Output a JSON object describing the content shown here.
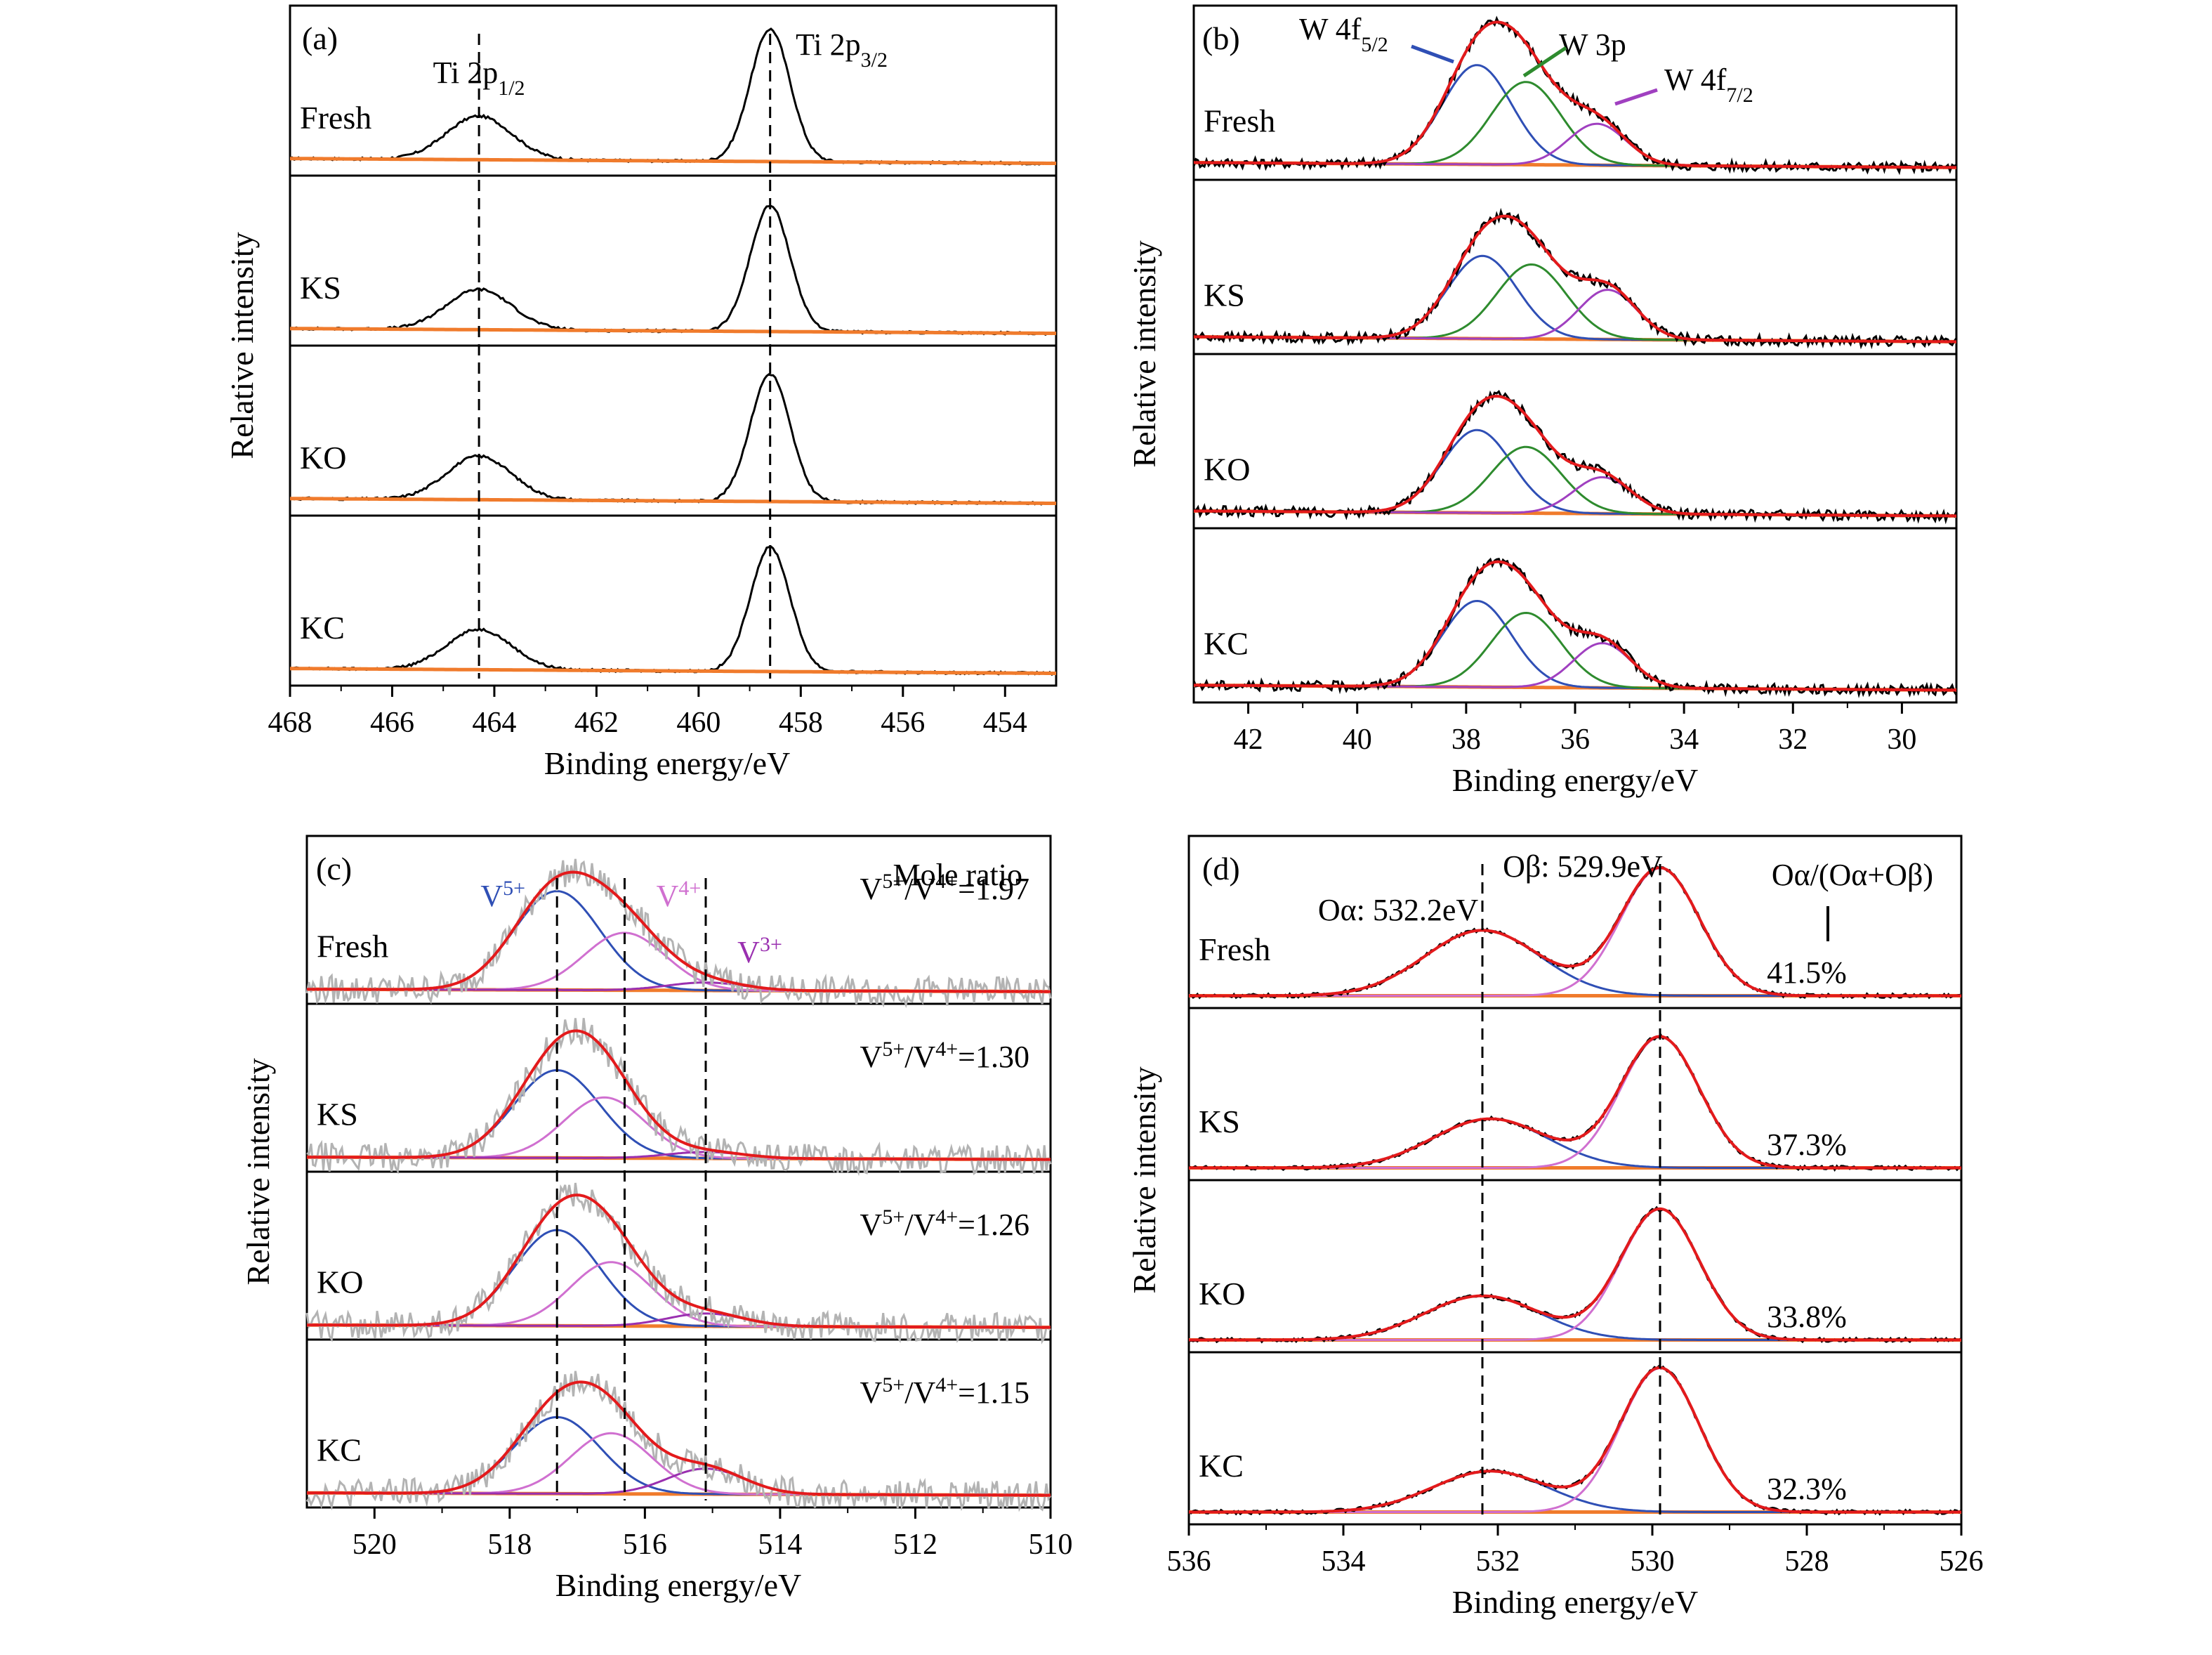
{
  "colors": {
    "raw_black": "#000000",
    "raw_gray": "#b3b3b3",
    "fit_envelope": "#e31a1c",
    "background": "#f07b2c",
    "ti_w_blue": "#2f4fb5",
    "w3p_green": "#2e8b2e",
    "w4f72_magenta": "#a040c0",
    "v5_blue": "#2f4fb5",
    "v4_pink": "#d070d0",
    "v3_purple": "#9a30b0",
    "o_alpha_blue": "#2f4fb5",
    "o_beta_pink": "#d070d0",
    "dashed_line": "#000000"
  },
  "chart_data": [
    {
      "panel": "(a)",
      "type": "line",
      "xlabel": "Binding energy/eV",
      "ylabel": "Relative intensity",
      "xlim": [
        468,
        453
      ],
      "xticks": [
        468,
        466,
        464,
        462,
        460,
        458,
        456,
        454
      ],
      "samples": [
        "Fresh",
        "KS",
        "KO",
        "KC"
      ],
      "dashed_lines": [
        464.3,
        458.6
      ],
      "annotations": [
        {
          "text": "Ti 2p",
          "sub": "1/2",
          "at": 464.3
        },
        {
          "text": "Ti 2p",
          "sub": "3/2",
          "at": 458.6
        }
      ],
      "series": [
        {
          "sample": "Fresh",
          "peaks": [
            {
              "name": "Ti 2p1/2",
              "center": 464.3,
              "height": 0.27
            },
            {
              "name": "Ti 2p3/2",
              "center": 458.6,
              "height": 0.82
            }
          ]
        },
        {
          "sample": "KS",
          "peaks": [
            {
              "name": "Ti 2p1/2",
              "center": 464.3,
              "height": 0.25
            },
            {
              "name": "Ti 2p3/2",
              "center": 458.6,
              "height": 0.78
            }
          ]
        },
        {
          "sample": "KO",
          "peaks": [
            {
              "name": "Ti 2p1/2",
              "center": 464.3,
              "height": 0.27
            },
            {
              "name": "Ti 2p3/2",
              "center": 458.6,
              "height": 0.79
            }
          ]
        },
        {
          "sample": "KC",
          "peaks": [
            {
              "name": "Ti 2p1/2",
              "center": 464.3,
              "height": 0.25
            },
            {
              "name": "Ti 2p3/2",
              "center": 458.6,
              "height": 0.77
            }
          ]
        }
      ]
    },
    {
      "panel": "(b)",
      "type": "line",
      "xlabel": "Binding energy/eV",
      "ylabel": "Relative intensity",
      "xlim": [
        43,
        29
      ],
      "xticks": [
        42,
        40,
        38,
        36,
        34,
        32,
        30
      ],
      "samples": [
        "Fresh",
        "KS",
        "KO",
        "KC"
      ],
      "annotations": [
        {
          "text": "W 4f",
          "sub": "5/2"
        },
        {
          "text": "W 3p"
        },
        {
          "text": "W 4f",
          "sub": "7/2"
        }
      ],
      "series": [
        {
          "sample": "Fresh",
          "peaks": [
            {
              "name": "W 4f5/2",
              "center": 37.8,
              "height": 0.6
            },
            {
              "name": "W 3p",
              "center": 36.9,
              "height": 0.5
            },
            {
              "name": "W 4f7/2",
              "center": 35.6,
              "height": 0.25
            }
          ]
        },
        {
          "sample": "KS",
          "peaks": [
            {
              "name": "W 4f5/2",
              "center": 37.7,
              "height": 0.5
            },
            {
              "name": "W 3p",
              "center": 36.8,
              "height": 0.45
            },
            {
              "name": "W 4f7/2",
              "center": 35.4,
              "height": 0.3
            }
          ]
        },
        {
          "sample": "KO",
          "peaks": [
            {
              "name": "W 4f5/2",
              "center": 37.8,
              "height": 0.5
            },
            {
              "name": "W 3p",
              "center": 36.9,
              "height": 0.4
            },
            {
              "name": "W 4f7/2",
              "center": 35.5,
              "height": 0.22
            }
          ]
        },
        {
          "sample": "KC",
          "peaks": [
            {
              "name": "W 4f5/2",
              "center": 37.8,
              "height": 0.52
            },
            {
              "name": "W 3p",
              "center": 36.9,
              "height": 0.45
            },
            {
              "name": "W 4f7/2",
              "center": 35.5,
              "height": 0.27
            }
          ]
        }
      ]
    },
    {
      "panel": "(c)",
      "type": "line",
      "xlabel": "Binding energy/eV",
      "ylabel": "Relative intensity",
      "xlim": [
        521,
        510
      ],
      "xticks": [
        520,
        518,
        516,
        514,
        512,
        510
      ],
      "samples": [
        "Fresh",
        "KS",
        "KO",
        "KC"
      ],
      "dashed_lines": [
        517.3,
        516.3,
        515.1
      ],
      "legend_title": "Mole ratio",
      "annotations": [
        {
          "text": "V",
          "sup": "5+"
        },
        {
          "text": "V",
          "sup": "4+"
        },
        {
          "text": "V",
          "sup": "3+"
        }
      ],
      "ratios": [
        {
          "sample": "Fresh",
          "label": "V5+/V4+=",
          "value": "1.97"
        },
        {
          "sample": "KS",
          "label": "V5+/V4+=",
          "value": "1.30"
        },
        {
          "sample": "KO",
          "label": "V5+/V4+=",
          "value": "1.26"
        },
        {
          "sample": "KC",
          "label": "V5+/V4+=",
          "value": "1.15"
        }
      ],
      "series": [
        {
          "sample": "Fresh",
          "peaks": [
            {
              "name": "V5+",
              "center": 517.3,
              "height": 0.62
            },
            {
              "name": "V4+",
              "center": 516.3,
              "height": 0.36
            },
            {
              "name": "V3+",
              "center": 515.1,
              "height": 0.05
            }
          ]
        },
        {
          "sample": "KS",
          "peaks": [
            {
              "name": "V5+",
              "center": 517.3,
              "height": 0.55
            },
            {
              "name": "V4+",
              "center": 516.6,
              "height": 0.38
            },
            {
              "name": "V3+",
              "center": 515.1,
              "height": 0.04
            }
          ]
        },
        {
          "sample": "KO",
          "peaks": [
            {
              "name": "V5+",
              "center": 517.3,
              "height": 0.6
            },
            {
              "name": "V4+",
              "center": 516.5,
              "height": 0.4
            },
            {
              "name": "V3+",
              "center": 515.1,
              "height": 0.08
            }
          ]
        },
        {
          "sample": "KC",
          "peaks": [
            {
              "name": "V5+",
              "center": 517.3,
              "height": 0.48
            },
            {
              "name": "V4+",
              "center": 516.5,
              "height": 0.38
            },
            {
              "name": "V3+",
              "center": 515.1,
              "height": 0.16
            }
          ]
        }
      ]
    },
    {
      "panel": "(d)",
      "type": "line",
      "xlabel": "Binding energy/eV",
      "ylabel": "Relative intensity",
      "xlim": [
        536,
        526
      ],
      "xticks": [
        536,
        534,
        532,
        530,
        528,
        526
      ],
      "samples": [
        "Fresh",
        "KS",
        "KO",
        "KC"
      ],
      "dashed_lines": [
        532.2,
        529.9
      ],
      "legend_title": "Oα/(Oα+Oβ)",
      "annotations": [
        {
          "text": "Oα: 532.2eV"
        },
        {
          "text": "Oβ: 529.9eV"
        }
      ],
      "ratios": [
        {
          "sample": "Fresh",
          "value": "41.5%"
        },
        {
          "sample": "KS",
          "value": "37.3%"
        },
        {
          "sample": "KO",
          "value": "33.8%"
        },
        {
          "sample": "KC",
          "value": "32.3%"
        }
      ],
      "series": [
        {
          "sample": "Fresh",
          "peaks": [
            {
              "name": "Oα",
              "center": 532.2,
              "height": 0.4
            },
            {
              "name": "Oβ",
              "center": 529.9,
              "height": 0.78
            }
          ]
        },
        {
          "sample": "KS",
          "peaks": [
            {
              "name": "Oα",
              "center": 532.1,
              "height": 0.3
            },
            {
              "name": "Oβ",
              "center": 529.9,
              "height": 0.8
            }
          ]
        },
        {
          "sample": "KO",
          "peaks": [
            {
              "name": "Oα",
              "center": 532.2,
              "height": 0.27
            },
            {
              "name": "Oβ",
              "center": 529.9,
              "height": 0.8
            }
          ]
        },
        {
          "sample": "KC",
          "peaks": [
            {
              "name": "Oα",
              "center": 532.1,
              "height": 0.25
            },
            {
              "name": "Oβ",
              "center": 529.9,
              "height": 0.88
            }
          ]
        }
      ]
    }
  ]
}
